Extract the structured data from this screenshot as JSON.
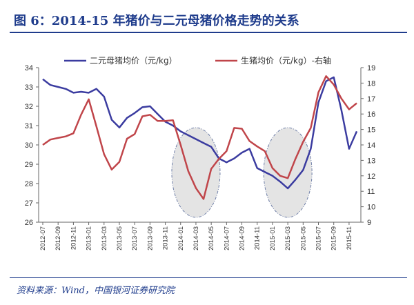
{
  "title": "图 6：2014-15 年猪价与二元母猪价格走势的关系",
  "source": "资料来源：Wind，中国银河证券研究院",
  "colors": {
    "title": "#1f3c8c",
    "sow": "#3b3ca0",
    "hog": "#c0454a",
    "ellipse_fill": "#e4e4e4",
    "ellipse_stroke": "#6f7fa8"
  },
  "chart_data": {
    "type": "line",
    "x": [
      "2012-07",
      "2012-08",
      "2012-09",
      "2012-10",
      "2012-11",
      "2012-12",
      "2013-01",
      "2013-02",
      "2013-03",
      "2013-04",
      "2013-05",
      "2013-06",
      "2013-07",
      "2013-08",
      "2013-09",
      "2013-10",
      "2013-11",
      "2013-12",
      "2014-01",
      "2014-02",
      "2014-03",
      "2014-04",
      "2014-05",
      "2014-06",
      "2014-07",
      "2014-08",
      "2014-09",
      "2014-10",
      "2014-11",
      "2014-12",
      "2015-01",
      "2015-02",
      "2015-03",
      "2015-04",
      "2015-05",
      "2015-06",
      "2015-07",
      "2015-08",
      "2015-09",
      "2015-10",
      "2015-11",
      "2015-12"
    ],
    "x_tick_labels": [
      "2012-07",
      "2012-09",
      "2012-11",
      "2013-01",
      "2013-03",
      "2013-05",
      "2013-07",
      "2013-09",
      "2013-11",
      "2014-01",
      "2014-03",
      "2014-05",
      "2014-07",
      "2014-09",
      "2014-11",
      "2015-01",
      "2015-03",
      "2015-05",
      "2015-07",
      "2015-09",
      "2015-11"
    ],
    "series": [
      {
        "name": "二元母猪均价（元/kg）",
        "axis": "left",
        "values": [
          33.4,
          33.1,
          33.0,
          32.9,
          32.7,
          32.75,
          32.7,
          32.9,
          32.5,
          31.3,
          30.9,
          31.4,
          31.65,
          31.95,
          32.0,
          31.6,
          31.2,
          31.0,
          30.7,
          30.5,
          30.3,
          30.1,
          29.9,
          29.3,
          29.1,
          29.3,
          29.6,
          29.8,
          28.8,
          28.6,
          28.4,
          28.1,
          27.75,
          28.2,
          28.7,
          29.8,
          32.2,
          33.3,
          33.5,
          31.8,
          29.8,
          30.7
        ]
      },
      {
        "name": "生猪均价（元/kg）-右轴",
        "axis": "right",
        "values": [
          14.0,
          14.35,
          14.45,
          14.55,
          14.75,
          15.95,
          16.95,
          15.2,
          13.4,
          12.4,
          12.9,
          14.4,
          14.7,
          15.85,
          15.95,
          15.55,
          15.55,
          15.6,
          14.0,
          12.3,
          11.2,
          10.5,
          12.45,
          13.1,
          13.6,
          15.1,
          15.05,
          14.25,
          13.9,
          13.6,
          12.5,
          12.0,
          11.85,
          13.1,
          14.2,
          15.1,
          17.4,
          18.45,
          17.9,
          17.0,
          16.3,
          16.7
        ]
      }
    ],
    "y_left": {
      "min": 26,
      "max": 34,
      "ticks": [
        "26",
        "27",
        "28",
        "29",
        "30",
        "31",
        "32",
        "33",
        "34"
      ]
    },
    "y_right": {
      "min": 9,
      "max": 19,
      "ticks": [
        "9",
        "10",
        "11",
        "12",
        "13",
        "14",
        "15",
        "16",
        "17",
        "18",
        "19"
      ]
    },
    "highlighted_periods": [
      "2014-03",
      "2015-03"
    ],
    "legend_position": "top",
    "grid": false
  }
}
